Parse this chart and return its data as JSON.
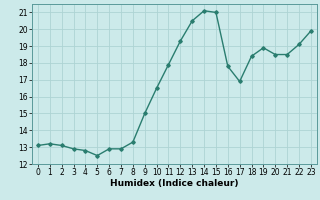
{
  "x": [
    0,
    1,
    2,
    3,
    4,
    5,
    6,
    7,
    8,
    9,
    10,
    11,
    12,
    13,
    14,
    15,
    16,
    17,
    18,
    19,
    20,
    21,
    22,
    23
  ],
  "y": [
    13.1,
    13.2,
    13.1,
    12.9,
    12.8,
    12.5,
    12.9,
    12.9,
    13.3,
    15.0,
    16.5,
    17.9,
    19.3,
    20.5,
    21.1,
    21.0,
    17.8,
    16.9,
    18.4,
    18.9,
    18.5,
    18.5,
    19.1,
    19.9
  ],
  "line_color": "#2a7d6f",
  "marker": "D",
  "marker_size": 1.8,
  "bg_color": "#cceaea",
  "grid_color": "#aed4d4",
  "xlabel": "Humidex (Indice chaleur)",
  "xlim": [
    -0.5,
    23.5
  ],
  "ylim": [
    12,
    21.5
  ],
  "yticks": [
    12,
    13,
    14,
    15,
    16,
    17,
    18,
    19,
    20,
    21
  ],
  "xticks": [
    0,
    1,
    2,
    3,
    4,
    5,
    6,
    7,
    8,
    9,
    10,
    11,
    12,
    13,
    14,
    15,
    16,
    17,
    18,
    19,
    20,
    21,
    22,
    23
  ],
  "xlabel_fontsize": 6.5,
  "tick_fontsize": 5.5,
  "line_width": 1.0
}
